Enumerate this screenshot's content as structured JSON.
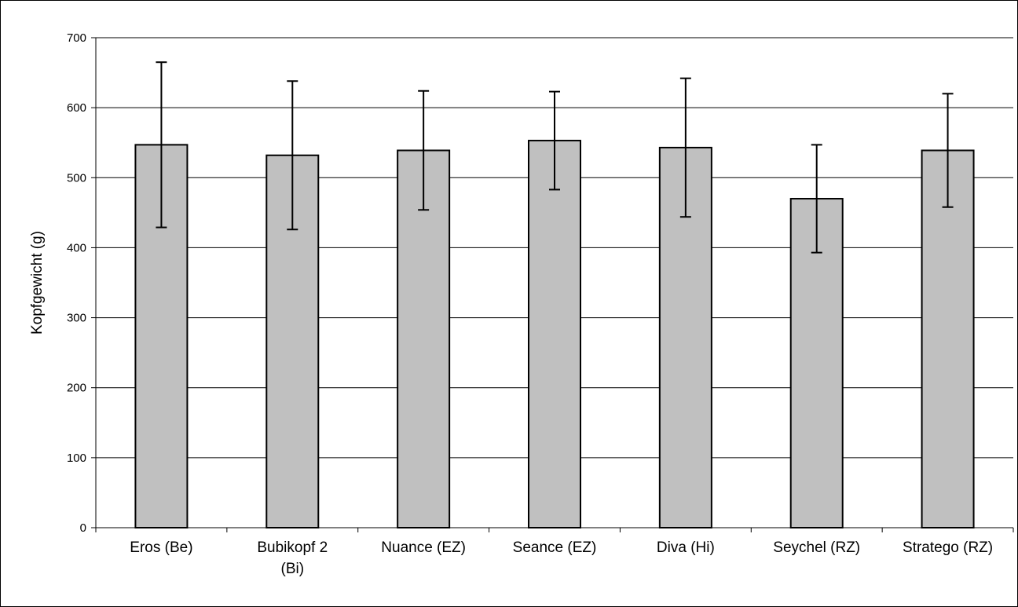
{
  "chart_data": {
    "type": "bar",
    "title": "",
    "xlabel": "",
    "ylabel": "Kopfgewicht (g)",
    "ylim": [
      0,
      700
    ],
    "yticks": [
      0,
      100,
      200,
      300,
      400,
      500,
      600,
      700
    ],
    "grid": true,
    "legend": "none",
    "categories": [
      [
        "Eros (Be)"
      ],
      [
        "Bubikopf 2",
        "(Bi)"
      ],
      [
        "Nuance (EZ)"
      ],
      [
        "Seance (EZ)"
      ],
      [
        "Diva (Hi)"
      ],
      [
        "Seychel (RZ)"
      ],
      [
        "Stratego (RZ)"
      ]
    ],
    "values": [
      547,
      532,
      539,
      553,
      543,
      470,
      539
    ],
    "error": [
      118,
      106,
      85,
      70,
      99,
      77,
      81
    ],
    "bar_color": "#c0c0c0",
    "bar_stroke": "#000000",
    "grid_color": "#000000"
  }
}
